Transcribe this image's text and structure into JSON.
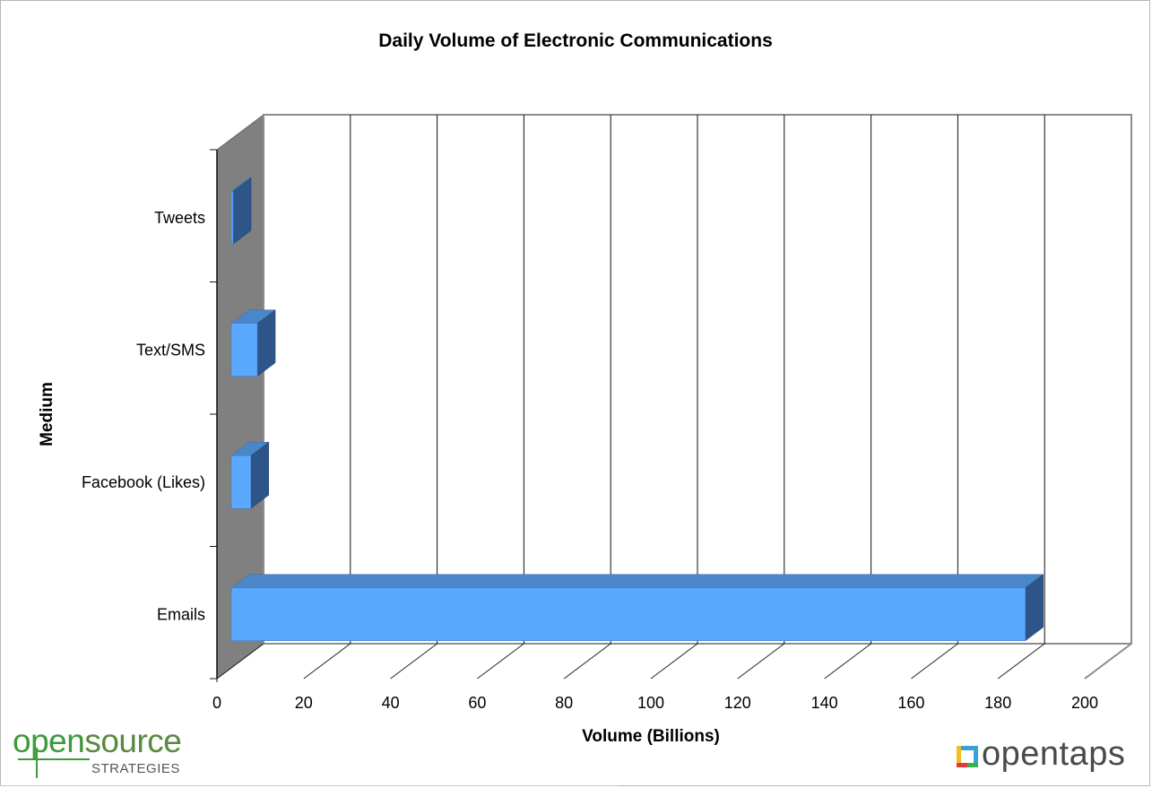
{
  "chart_data": {
    "type": "bar",
    "orientation": "horizontal",
    "style": "3d",
    "title": "Daily Volume of Electronic Communications",
    "xlabel": "Volume (Billions)",
    "ylabel": "Medium",
    "categories": [
      "Tweets",
      "Text/SMS",
      "Facebook (Likes)",
      "Emails"
    ],
    "values": [
      0.2,
      6,
      4.5,
      183
    ],
    "xlim": [
      0,
      200
    ],
    "xticks": [
      "0",
      "20",
      "40",
      "60",
      "80",
      "100",
      "120",
      "140",
      "160",
      "180",
      "200"
    ],
    "grid": true,
    "colors": {
      "bar_front": "#5ba8ff",
      "bar_top": "#4a86c8",
      "bar_side": "#2e5587",
      "back_wall": "#808080",
      "frame": "#8c8c8c"
    }
  },
  "logos": {
    "left": {
      "part1": "open",
      "part2": "source",
      "sub": "STRATEGIES"
    },
    "right": {
      "text": "opentaps"
    }
  }
}
